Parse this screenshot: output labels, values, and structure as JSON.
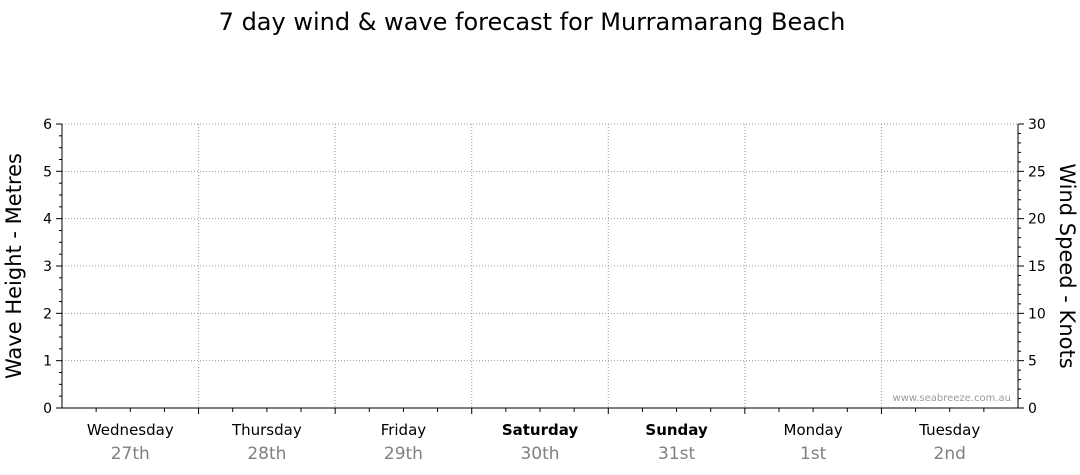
{
  "chart_data": {
    "type": "line",
    "title": "7 day wind & wave forecast for Murramarang Beach",
    "ylabel_left": "Wave Height - Metres",
    "ylabel_right": "Wind Speed - Knots",
    "ylim_left": [
      0,
      6
    ],
    "yticks_left": [
      0,
      1,
      2,
      3,
      4,
      5,
      6
    ],
    "ylim_right": [
      0,
      30
    ],
    "yticks_right": [
      0,
      5,
      10,
      15,
      20,
      25,
      30
    ],
    "grid": true,
    "days": [
      {
        "name": "Wednesday",
        "date": "27th",
        "weekend": false
      },
      {
        "name": "Thursday",
        "date": "28th",
        "weekend": false
      },
      {
        "name": "Friday",
        "date": "29th",
        "weekend": false
      },
      {
        "name": "Saturday",
        "date": "30th",
        "weekend": true
      },
      {
        "name": "Sunday",
        "date": "31st",
        "weekend": true
      },
      {
        "name": "Monday",
        "date": "1st",
        "weekend": false
      },
      {
        "name": "Tuesday",
        "date": "2nd",
        "weekend": false
      }
    ],
    "series": [],
    "watermark": "www.seabreeze.com.au"
  }
}
